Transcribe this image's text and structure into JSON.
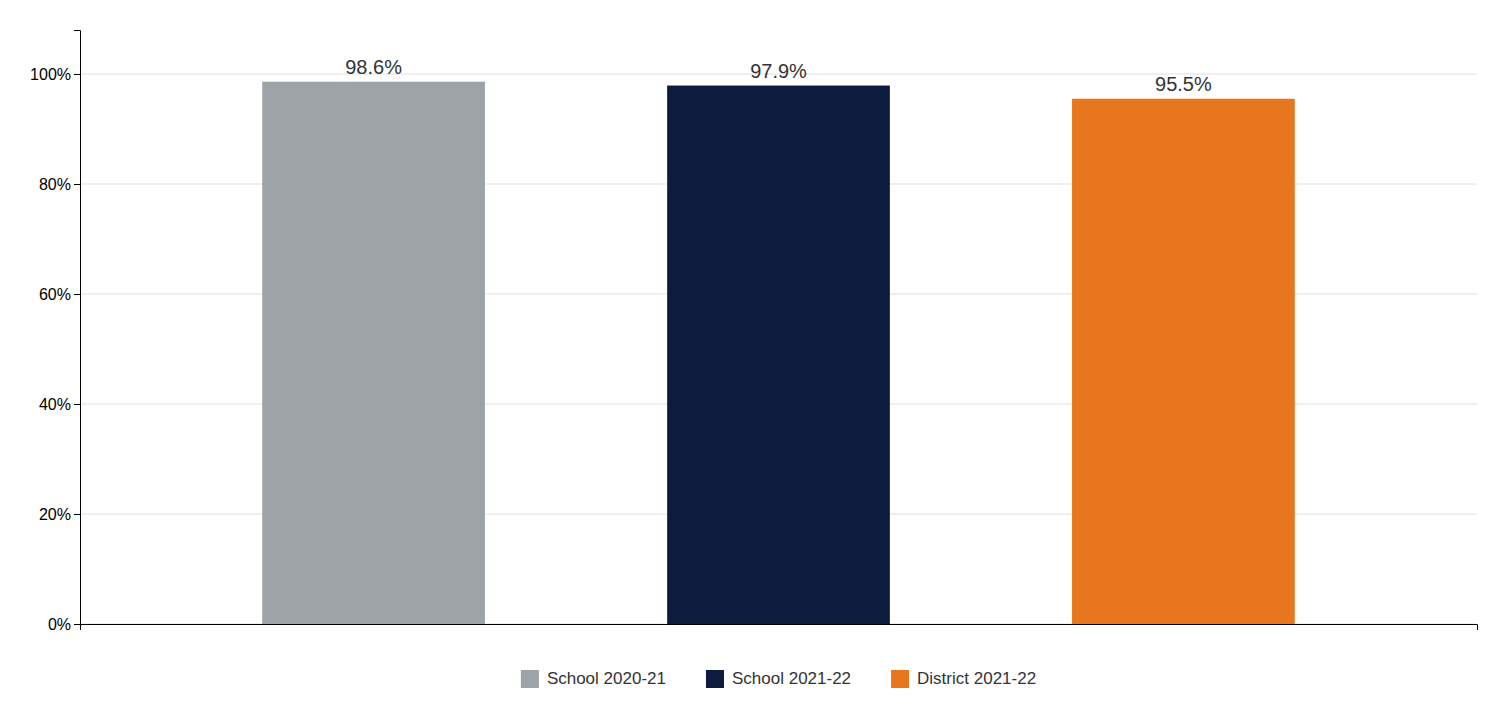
{
  "chart_data": {
    "type": "bar",
    "categories": [
      "School 2020-21",
      "School 2021-22",
      "District 2021-22"
    ],
    "values": [
      98.6,
      97.9,
      95.5
    ],
    "value_labels": [
      "98.6%",
      "97.9%",
      "95.5%"
    ],
    "colors": [
      "#9EA3A8",
      "#0D1B3E",
      "#E8761E"
    ],
    "ylim": [
      0,
      108
    ],
    "yticks": [
      {
        "value": 0,
        "label": "0%"
      },
      {
        "value": 20,
        "label": "20%"
      },
      {
        "value": 40,
        "label": "40%"
      },
      {
        "value": 60,
        "label": "60%"
      },
      {
        "value": 80,
        "label": "80%"
      },
      {
        "value": 100,
        "label": "100%"
      }
    ],
    "grid": true,
    "data_labels": true,
    "tick_labels": "y",
    "legend": "bottom"
  }
}
